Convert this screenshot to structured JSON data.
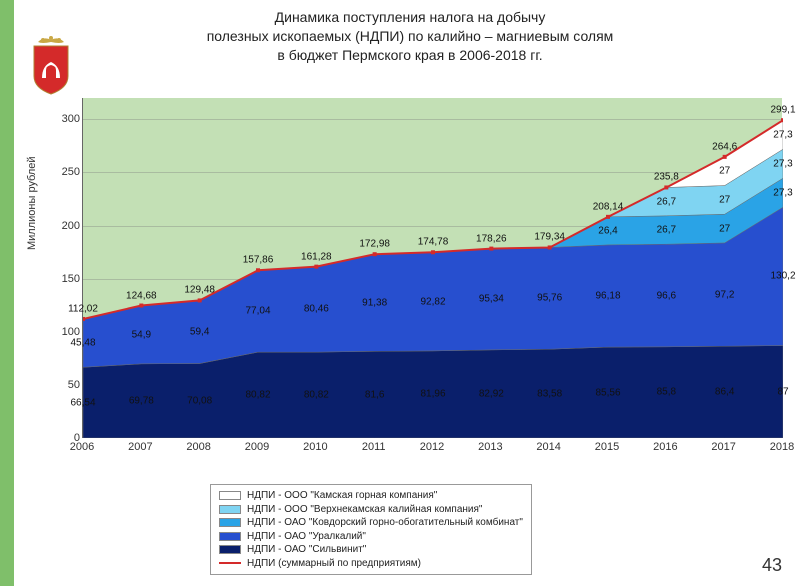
{
  "title": {
    "line1": "Динамика поступления налога на добычу",
    "line2": "полезных ископаемых (НДПИ) по калийно – магниевым солям",
    "line3": "в бюджет Пермского края в 2006-2018 гг."
  },
  "ylabel": "Миллионы рублей",
  "page_number": "43",
  "chart": {
    "type": "stacked-area-with-line",
    "background_color": "#c3e0b5",
    "xlim": [
      2006,
      2018
    ],
    "ylim": [
      0,
      320
    ],
    "ytick_step": 50,
    "yticks": [
      0,
      50,
      100,
      150,
      200,
      250,
      300
    ],
    "years": [
      2006,
      2007,
      2008,
      2009,
      2010,
      2011,
      2012,
      2013,
      2014,
      2015,
      2016,
      2017,
      2018
    ],
    "series": [
      {
        "name": "НДПИ - ОАО \"Сильвинит\"",
        "color": "#0a1f6b",
        "values": [
          66.54,
          69.78,
          70.08,
          80.82,
          80.82,
          81.6,
          81.96,
          82.92,
          83.58,
          85.56,
          85.8,
          86.4,
          87
        ]
      },
      {
        "name": "НДПИ - ОАО \"Уралкалий\"",
        "color": "#274fcf",
        "values": [
          45.48,
          54.9,
          59.4,
          77.04,
          80.46,
          91.38,
          92.82,
          95.34,
          95.76,
          96.18,
          96.6,
          97.2,
          130.2
        ]
      },
      {
        "name": "НДПИ - ОАО \"Ковдорский горно-обогатительный комбинат\"",
        "color": "#2aa3e6",
        "values": [
          0,
          0,
          0,
          0,
          0,
          0,
          0,
          0,
          0,
          26.4,
          26.7,
          27,
          27.3
        ]
      },
      {
        "name": "НДПИ - ООО \"Верхнекамская калийная компания\"",
        "color": "#7fd4f2",
        "values": [
          0,
          0,
          0,
          0,
          0,
          0,
          0,
          0,
          0,
          0,
          26.7,
          27,
          27.3
        ]
      },
      {
        "name": "НДПИ - ООО \"Камская горная компания\"",
        "color": "#ffffff",
        "values": [
          0,
          0,
          0,
          0,
          0,
          0,
          0,
          0,
          0,
          0,
          0,
          27,
          27.3
        ]
      }
    ],
    "sum_line": {
      "name": "НДПИ (суммарный по предприятиям)",
      "color": "#d42a2a",
      "width": 2,
      "values": [
        112.02,
        124.68,
        129.48,
        157.86,
        161.28,
        172.98,
        174.78,
        178.26,
        179.34,
        208.14,
        235.8,
        264.6,
        299.1
      ]
    },
    "grid_color": "rgba(120,120,120,0.35)",
    "label_fontsize": 10
  },
  "legend": {
    "items": [
      {
        "label": "НДПИ - ООО \"Камская горная компания\"",
        "color": "#ffffff",
        "type": "area"
      },
      {
        "label": "НДПИ - ООО \"Верхнекамская калийная компания\"",
        "color": "#7fd4f2",
        "type": "area"
      },
      {
        "label": "НДПИ - ОАО \"Ковдорский горно-обогатительный комбинат\"",
        "color": "#2aa3e6",
        "type": "area"
      },
      {
        "label": "НДПИ - ОАО \"Уралкалий\"",
        "color": "#274fcf",
        "type": "area"
      },
      {
        "label": "НДПИ - ОАО \"Сильвинит\"",
        "color": "#0a1f6b",
        "type": "area"
      },
      {
        "label": "НДПИ (суммарный по предприятиям)",
        "color": "#d42a2a",
        "type": "line"
      }
    ]
  }
}
